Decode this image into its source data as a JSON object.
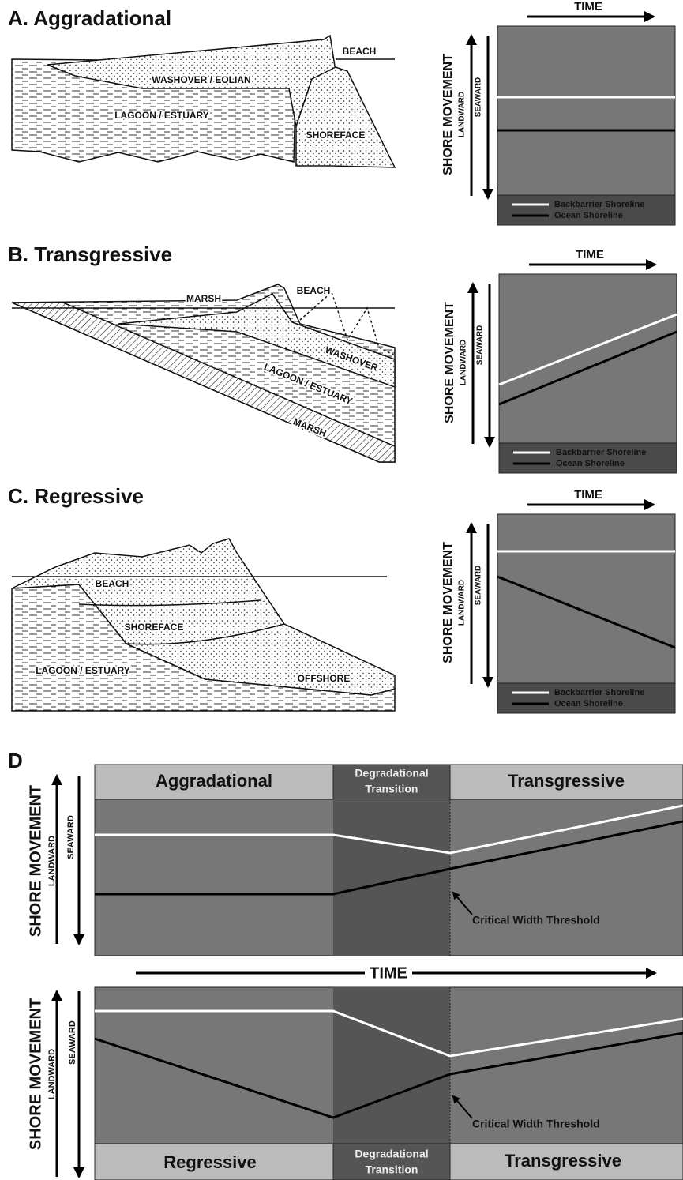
{
  "panel_a": {
    "title": "A. Aggradational",
    "section_labels": [
      "BEACH",
      "WASHOVER / EOLIAN",
      "LAGOON / ESTUARY",
      "SHOREFACE"
    ],
    "time": "TIME",
    "y_axis": "SHORE MOVEMENT",
    "landward": "LANDWARD",
    "seaward": "SEAWARD",
    "legend": [
      "Backbarrier Shoreline",
      "Ocean Shoreline"
    ]
  },
  "panel_b": {
    "title": "B. Transgressive",
    "section_labels": [
      "MARSH",
      "BEACH",
      "WASHOVER",
      "LAGOON / ESTUARY",
      "MARSH"
    ],
    "time": "TIME",
    "y_axis": "SHORE MOVEMENT",
    "landward": "LANDWARD",
    "seaward": "SEAWARD",
    "legend": [
      "Backbarrier Shoreline",
      "Ocean Shoreline"
    ]
  },
  "panel_c": {
    "title": "C. Regressive",
    "section_labels": [
      "BEACH",
      "SHOREFACE",
      "LAGOON / ESTUARY",
      "OFFSHORE"
    ],
    "time": "TIME",
    "y_axis": "SHORE MOVEMENT",
    "landward": "LANDWARD",
    "seaward": "SEAWARD",
    "legend": [
      "Backbarrier Shoreline",
      "Ocean Shoreline"
    ]
  },
  "panel_d": {
    "title": "D",
    "top": {
      "phases": [
        "Aggradational",
        "Transgressive"
      ],
      "transition": [
        "Degradational",
        "Transition"
      ],
      "annotation": "Critical Width Threshold",
      "y_axis": "SHORE MOVEMENT",
      "landward": "LANDWARD",
      "seaward": "SEAWARD"
    },
    "time": "TIME",
    "bottom": {
      "phases": [
        "Regressive",
        "Transgressive"
      ],
      "transition": [
        "Degradational",
        "Transition"
      ],
      "annotation": "Critical Width Threshold",
      "y_axis": "SHORE MOVEMENT",
      "landward": "LANDWARD",
      "seaward": "SEAWARD"
    }
  }
}
